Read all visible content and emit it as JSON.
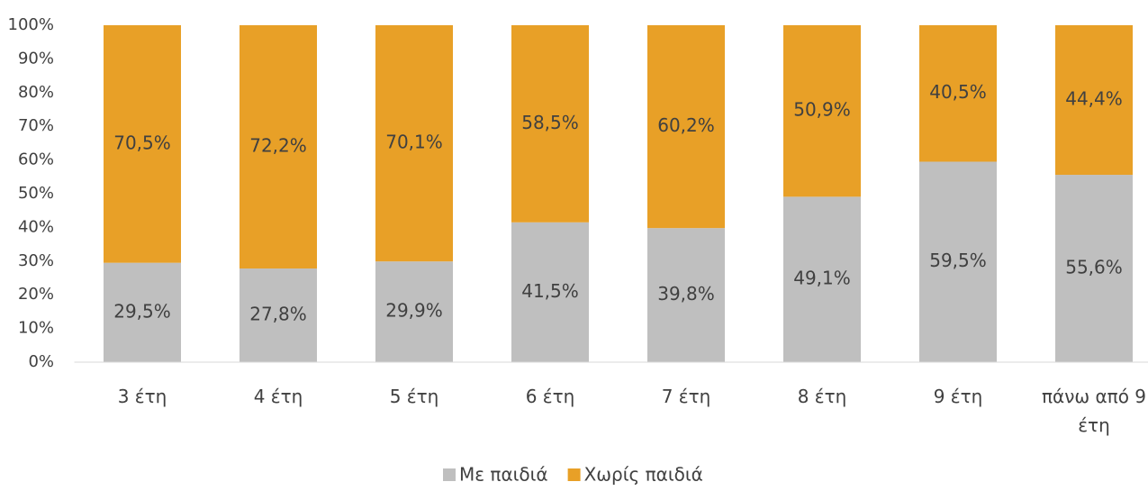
{
  "chart_data": {
    "type": "stacked_bar",
    "categories": [
      "3 έτη",
      "4 έτη",
      "5 έτη",
      "6 έτη",
      "7 έτη",
      "8 έτη",
      "9 έτη",
      "πάνω από 9 έτη"
    ],
    "series": [
      {
        "name": "Με παιδιά",
        "color": "#bfbfbf",
        "values": [
          29.5,
          27.8,
          29.9,
          41.5,
          39.8,
          49.1,
          59.5,
          55.6
        ],
        "value_labels": [
          "29,5%",
          "27,8%",
          "29,9%",
          "41,5%",
          "39,8%",
          "49,1%",
          "59,5%",
          "55,6%"
        ]
      },
      {
        "name": "Χωρίς παιδιά",
        "color": "#e8a027",
        "values": [
          70.5,
          72.2,
          70.1,
          58.5,
          60.2,
          50.9,
          40.5,
          44.4
        ],
        "value_labels": [
          "70,5%",
          "72,2%",
          "70,1%",
          "58,5%",
          "60,2%",
          "50,9%",
          "40,5%",
          "44,4%"
        ]
      }
    ],
    "ylim": [
      0,
      100
    ],
    "yticks": [
      {
        "value": 0,
        "label": "0%"
      },
      {
        "value": 10,
        "label": "10%"
      },
      {
        "value": 20,
        "label": "20%"
      },
      {
        "value": 30,
        "label": "30%"
      },
      {
        "value": 40,
        "label": "40%"
      },
      {
        "value": 50,
        "label": "50%"
      },
      {
        "value": 60,
        "label": "60%"
      },
      {
        "value": 70,
        "label": "70%"
      },
      {
        "value": 80,
        "label": "80%"
      },
      {
        "value": 90,
        "label": "90%"
      },
      {
        "value": 100,
        "label": "100%"
      }
    ],
    "grid": false,
    "legend": "bottom"
  }
}
